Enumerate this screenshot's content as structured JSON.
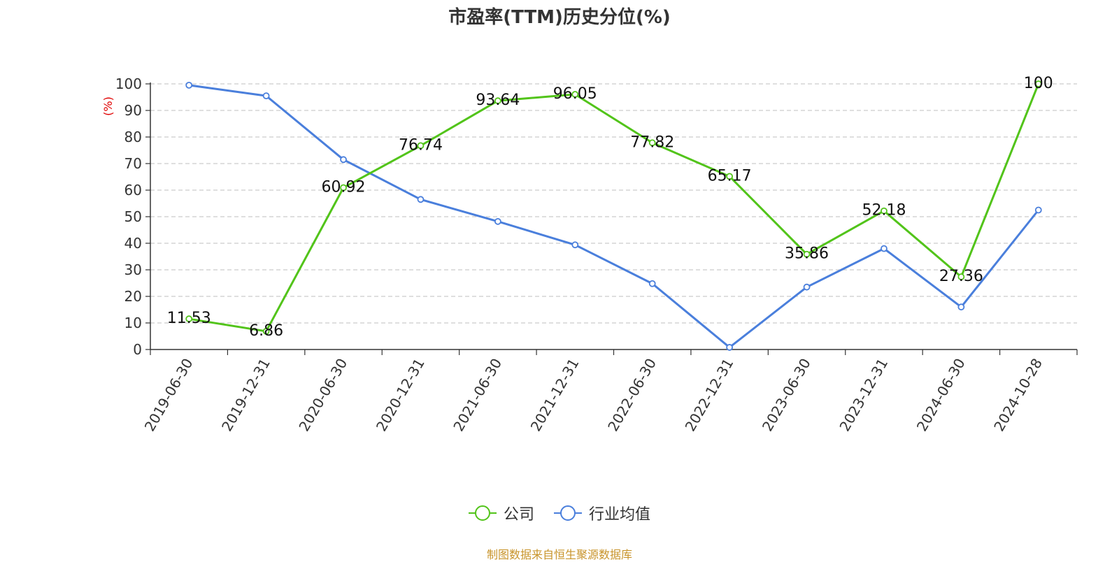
{
  "chart_data": {
    "type": "line",
    "title": "市盈率(TTM)历史分位(%)",
    "ylabel": "(%)",
    "ylim": [
      0,
      100
    ],
    "yticks": [
      0,
      10,
      20,
      30,
      40,
      50,
      60,
      70,
      80,
      90,
      100
    ],
    "categories": [
      "2019-06-30",
      "2019-12-31",
      "2020-06-30",
      "2020-12-31",
      "2021-06-30",
      "2021-12-31",
      "2022-06-30",
      "2022-12-31",
      "2023-06-30",
      "2023-12-31",
      "2024-06-30",
      "2024-10-28"
    ],
    "grid": true,
    "legend_position": "bottom-center",
    "series": [
      {
        "name": "公司",
        "color": "#52c41a",
        "values": [
          11.53,
          6.86,
          60.92,
          76.74,
          93.64,
          96.05,
          77.82,
          65.17,
          35.86,
          52.18,
          27.36,
          100
        ],
        "labels": [
          "11.53",
          "6.86",
          "60.92",
          "76.74",
          "93.64",
          "96.05",
          "77.82",
          "65.17",
          "35.86",
          "52.18",
          "27.36",
          "100"
        ]
      },
      {
        "name": "行业均值",
        "color": "#4a7fdc",
        "values": [
          99.5,
          95.5,
          71.5,
          56.5,
          48.2,
          39.4,
          24.8,
          0.8,
          23.5,
          38.0,
          16.0,
          52.5
        ]
      }
    ]
  },
  "source": "制图数据来自恒生聚源数据库"
}
